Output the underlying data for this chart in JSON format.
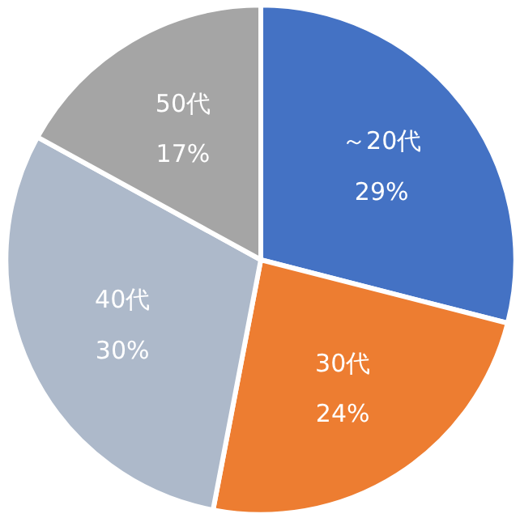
{
  "chart_data": {
    "type": "pie",
    "categories": [
      "～20代",
      "30代",
      "40代",
      "50代"
    ],
    "values": [
      29,
      24,
      30,
      17
    ],
    "colors": [
      "#4472c4",
      "#ed7d31",
      "#adb9ca",
      "#a5a5a5"
    ],
    "value_labels": [
      "29%",
      "24%",
      "30%",
      "17%"
    ]
  }
}
